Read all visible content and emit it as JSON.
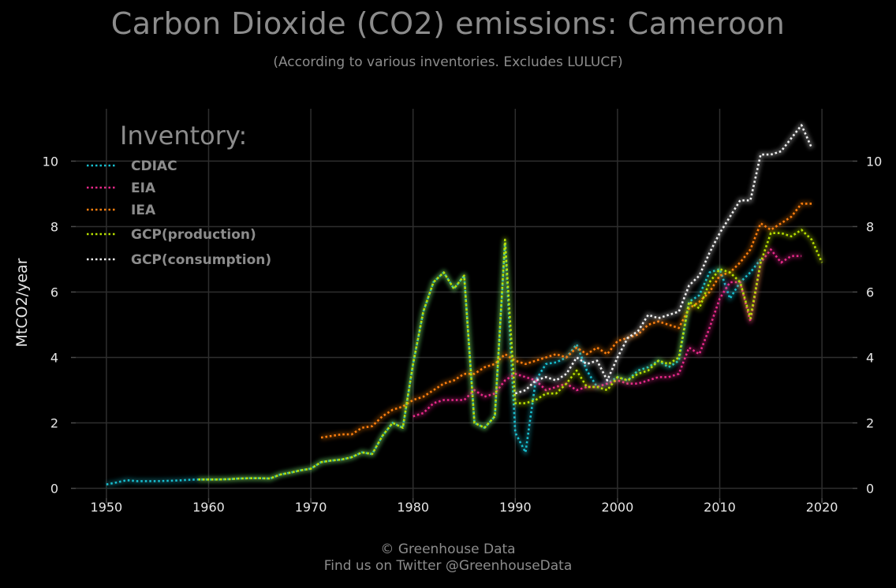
{
  "header": {
    "title": "Carbon Dioxide (CO2) emissions: Cameroon",
    "subtitle": "(According to various inventories. Excludes LULUCF)"
  },
  "footer": {
    "line1": "© Greenhouse Data",
    "line2": "Find us on Twitter @GreenhouseData"
  },
  "chart_data": {
    "type": "line",
    "title": "Carbon Dioxide (CO2) emissions: Cameroon",
    "subtitle": "(According to various inventories. Excludes LULUCF)",
    "xlabel": "",
    "ylabel": "MtCO2/year",
    "xlim": [
      1947,
      2023
    ],
    "ylim": [
      -0.3,
      11.6
    ],
    "xticks": [
      1950,
      1960,
      1970,
      1980,
      1990,
      2000,
      2010,
      2020
    ],
    "yticks": [
      0,
      2,
      4,
      6,
      8,
      10
    ],
    "grid": true,
    "legend_title": "Inventory:",
    "legend_position": "top-left",
    "series": [
      {
        "name": "CDIAC",
        "color": "#17becf",
        "x": [
          1950,
          1951,
          1952,
          1953,
          1954,
          1955,
          1956,
          1957,
          1958,
          1959,
          1960,
          1961,
          1962,
          1963,
          1964,
          1965,
          1966,
          1967,
          1968,
          1969,
          1970,
          1971,
          1972,
          1973,
          1974,
          1975,
          1976,
          1977,
          1978,
          1979,
          1980,
          1981,
          1982,
          1983,
          1984,
          1985,
          1986,
          1987,
          1988,
          1989,
          1990,
          1991,
          1992,
          1993,
          1994,
          1995,
          1996,
          1997,
          1998,
          1999,
          2000,
          2001,
          2002,
          2003,
          2004,
          2005,
          2006,
          2007,
          2008,
          2009,
          2010,
          2011,
          2012,
          2013,
          2014
        ],
        "y": [
          0.12,
          0.18,
          0.25,
          0.22,
          0.22,
          0.22,
          0.23,
          0.24,
          0.26,
          0.27,
          0.27,
          0.27,
          0.28,
          0.3,
          0.31,
          0.31,
          0.3,
          0.42,
          0.48,
          0.55,
          0.6,
          0.8,
          0.85,
          0.88,
          0.95,
          1.1,
          1.05,
          1.6,
          2.0,
          1.85,
          3.8,
          5.4,
          6.3,
          6.6,
          6.1,
          6.5,
          2.0,
          1.85,
          2.2,
          7.5,
          1.7,
          1.1,
          3.3,
          3.8,
          3.85,
          4.0,
          4.4,
          3.6,
          3.1,
          3.2,
          3.4,
          3.3,
          3.6,
          3.7,
          3.9,
          3.7,
          3.9,
          5.7,
          5.9,
          6.6,
          6.7,
          5.8,
          6.3,
          6.6,
          7.0
        ]
      },
      {
        "name": "EIA",
        "color": "#e7298a",
        "x": [
          1980,
          1981,
          1982,
          1983,
          1984,
          1985,
          1986,
          1987,
          1988,
          1989,
          1990,
          1991,
          1992,
          1993,
          1994,
          1995,
          1996,
          1997,
          1998,
          1999,
          2000,
          2001,
          2002,
          2003,
          2004,
          2005,
          2006,
          2007,
          2008,
          2009,
          2010,
          2011,
          2012,
          2013,
          2014,
          2015,
          2016,
          2017,
          2018
        ],
        "y": [
          2.2,
          2.3,
          2.6,
          2.7,
          2.7,
          2.7,
          3.0,
          2.8,
          2.9,
          3.3,
          3.5,
          3.4,
          3.3,
          3.0,
          3.1,
          3.2,
          3.0,
          3.1,
          3.1,
          3.2,
          3.3,
          3.2,
          3.2,
          3.3,
          3.4,
          3.4,
          3.5,
          4.3,
          4.1,
          4.9,
          5.8,
          6.3,
          6.3,
          5.1,
          6.9,
          7.3,
          6.9,
          7.1,
          7.1
        ]
      },
      {
        "name": "IEA",
        "color": "#ff7f0e",
        "x": [
          1971,
          1972,
          1973,
          1974,
          1975,
          1976,
          1977,
          1978,
          1979,
          1980,
          1981,
          1982,
          1983,
          1984,
          1985,
          1986,
          1987,
          1988,
          1989,
          1990,
          1991,
          1992,
          1993,
          1994,
          1995,
          1996,
          1997,
          1998,
          1999,
          2000,
          2001,
          2002,
          2003,
          2004,
          2005,
          2006,
          2007,
          2008,
          2009,
          2010,
          2011,
          2012,
          2013,
          2014,
          2015,
          2016,
          2017,
          2018,
          2019
        ],
        "y": [
          1.55,
          1.6,
          1.65,
          1.65,
          1.85,
          1.9,
          2.2,
          2.4,
          2.5,
          2.7,
          2.8,
          3.0,
          3.2,
          3.3,
          3.5,
          3.5,
          3.7,
          3.8,
          4.1,
          3.9,
          3.8,
          3.9,
          4.0,
          4.1,
          4.0,
          4.3,
          4.1,
          4.3,
          4.1,
          4.5,
          4.6,
          4.7,
          5.0,
          5.1,
          5.0,
          4.9,
          5.5,
          5.7,
          6.0,
          6.5,
          6.6,
          6.9,
          7.3,
          8.1,
          7.9,
          8.1,
          8.3,
          8.7,
          8.7
        ]
      },
      {
        "name": "GCP(production)",
        "color": "#b8e000",
        "x": [
          1959,
          1960,
          1961,
          1962,
          1963,
          1964,
          1965,
          1966,
          1967,
          1968,
          1969,
          1970,
          1971,
          1972,
          1973,
          1974,
          1975,
          1976,
          1977,
          1978,
          1979,
          1980,
          1981,
          1982,
          1983,
          1984,
          1985,
          1986,
          1987,
          1988,
          1989,
          1990,
          1991,
          1992,
          1993,
          1994,
          1995,
          1996,
          1997,
          1998,
          1999,
          2000,
          2001,
          2002,
          2003,
          2004,
          2005,
          2006,
          2007,
          2008,
          2009,
          2010,
          2011,
          2012,
          2013,
          2014,
          2015,
          2016,
          2017,
          2018,
          2019,
          2020
        ],
        "y": [
          0.27,
          0.27,
          0.27,
          0.28,
          0.3,
          0.31,
          0.31,
          0.3,
          0.42,
          0.48,
          0.55,
          0.6,
          0.8,
          0.85,
          0.88,
          0.95,
          1.1,
          1.05,
          1.6,
          2.0,
          1.85,
          3.8,
          5.4,
          6.3,
          6.6,
          6.1,
          6.5,
          2.0,
          1.85,
          2.2,
          7.6,
          2.6,
          2.6,
          2.7,
          2.9,
          2.9,
          3.2,
          3.6,
          3.1,
          3.1,
          3.0,
          3.4,
          3.3,
          3.5,
          3.6,
          3.9,
          3.8,
          4.0,
          5.7,
          5.5,
          6.3,
          6.7,
          6.6,
          6.3,
          5.2,
          6.9,
          7.8,
          7.8,
          7.7,
          7.9,
          7.6,
          6.9
        ]
      },
      {
        "name": "GCP(consumption)",
        "color": "#f2f2f2",
        "x": [
          1990,
          1991,
          1992,
          1993,
          1994,
          1995,
          1996,
          1997,
          1998,
          1999,
          2000,
          2001,
          2002,
          2003,
          2004,
          2005,
          2006,
          2007,
          2008,
          2009,
          2010,
          2011,
          2012,
          2013,
          2014,
          2015,
          2016,
          2017,
          2018,
          2019
        ],
        "y": [
          2.9,
          3.0,
          3.3,
          3.4,
          3.3,
          3.5,
          4.0,
          3.8,
          3.9,
          3.3,
          4.0,
          4.6,
          4.8,
          5.3,
          5.2,
          5.3,
          5.4,
          6.2,
          6.5,
          7.2,
          7.8,
          8.3,
          8.8,
          8.8,
          10.2,
          10.2,
          10.3,
          10.7,
          11.1,
          10.4
        ]
      }
    ]
  }
}
